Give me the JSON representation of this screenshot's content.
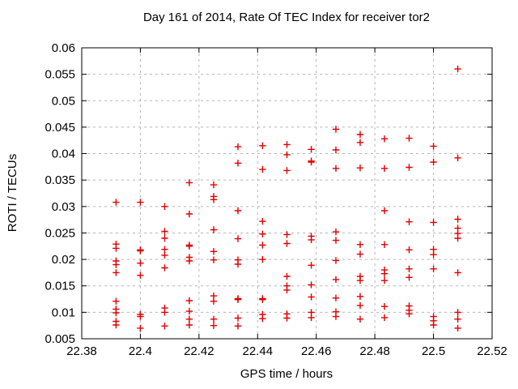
{
  "chart_data": {
    "type": "scatter",
    "title": "Day 161 of 2014, Rate Of TEC Index for receiver tor2",
    "xlabel": "GPS time / hours",
    "ylabel": "ROTI / TECUs",
    "xlim": [
      22.38,
      22.52
    ],
    "ylim": [
      0.005,
      0.06
    ],
    "x_ticks": [
      22.38,
      22.4,
      22.42,
      22.44,
      22.46,
      22.48,
      22.5,
      22.52
    ],
    "x_tick_labels": [
      "22.38",
      "22.4",
      "22.42",
      "22.44",
      "22.46",
      "22.48",
      "22.5",
      "22.52"
    ],
    "y_ticks": [
      0.005,
      0.01,
      0.015,
      0.02,
      0.025,
      0.03,
      0.035,
      0.04,
      0.045,
      0.05,
      0.055,
      0.06
    ],
    "y_tick_labels": [
      "0.005",
      "0.01",
      "0.015",
      "0.02",
      "0.025",
      "0.03",
      "0.035",
      "0.04",
      "0.045",
      "0.05",
      "0.055",
      "0.06"
    ],
    "grid": true,
    "legend_position": "none",
    "marker_shape": "plus",
    "marker_color": "#e00000",
    "grid_color": "#b5b5b5",
    "border_color": "#000000",
    "columns": [
      {
        "x": 22.3917,
        "y": [
          0.0308,
          0.0229,
          0.0221,
          0.0197,
          0.019,
          0.0175,
          0.0121,
          0.0106,
          0.0099,
          0.0083,
          0.0076
        ]
      },
      {
        "x": 22.4,
        "y": [
          0.0308,
          0.0218,
          0.0216,
          0.0193,
          0.017,
          0.0096,
          0.0092,
          0.007
        ]
      },
      {
        "x": 22.4083,
        "y": [
          0.03,
          0.0253,
          0.024,
          0.0219,
          0.0208,
          0.0184,
          0.0108,
          0.01,
          0.0074
        ]
      },
      {
        "x": 22.4167,
        "y": [
          0.0345,
          0.0286,
          0.0227,
          0.0225,
          0.0204,
          0.0197,
          0.0122,
          0.0102,
          0.0087,
          0.0076
        ]
      },
      {
        "x": 22.425,
        "y": [
          0.0341,
          0.0319,
          0.0313,
          0.0256,
          0.0215,
          0.0199,
          0.0131,
          0.0121,
          0.0087,
          0.0075
        ]
      },
      {
        "x": 22.4333,
        "y": [
          0.0413,
          0.0382,
          0.0292,
          0.0239,
          0.0199,
          0.0191,
          0.0126,
          0.0124,
          0.0089,
          0.0074
        ]
      },
      {
        "x": 22.4417,
        "y": [
          0.0415,
          0.037,
          0.0272,
          0.0248,
          0.0227,
          0.02,
          0.0126,
          0.0124,
          0.0096,
          0.0088
        ]
      },
      {
        "x": 22.45,
        "y": [
          0.0417,
          0.0398,
          0.0368,
          0.0247,
          0.023,
          0.0168,
          0.015,
          0.0142,
          0.0097,
          0.0089
        ]
      },
      {
        "x": 22.4583,
        "y": [
          0.0408,
          0.0386,
          0.0384,
          0.0244,
          0.0237,
          0.0189,
          0.0152,
          0.0129,
          0.01,
          0.009
        ]
      },
      {
        "x": 22.4667,
        "y": [
          0.0446,
          0.0407,
          0.0372,
          0.0252,
          0.0236,
          0.0198,
          0.0162,
          0.0127,
          0.0101,
          0.0092
        ]
      },
      {
        "x": 22.475,
        "y": [
          0.0436,
          0.0421,
          0.0373,
          0.0228,
          0.021,
          0.0168,
          0.016,
          0.013,
          0.0113,
          0.0087
        ]
      },
      {
        "x": 22.4833,
        "y": [
          0.0428,
          0.0372,
          0.0292,
          0.0228,
          0.018,
          0.0173,
          0.016,
          0.0111,
          0.009
        ]
      },
      {
        "x": 22.4917,
        "y": [
          0.0429,
          0.0374,
          0.0271,
          0.0218,
          0.0182,
          0.0166,
          0.0112,
          0.0104,
          0.0097
        ]
      },
      {
        "x": 22.5,
        "y": [
          0.0414,
          0.0384,
          0.027,
          0.0219,
          0.0209,
          0.0182,
          0.0092,
          0.0084,
          0.0076
        ]
      },
      {
        "x": 22.5083,
        "y": [
          0.056,
          0.0392,
          0.0276,
          0.0259,
          0.0249,
          0.024,
          0.0175,
          0.01,
          0.0087,
          0.007
        ]
      }
    ]
  }
}
